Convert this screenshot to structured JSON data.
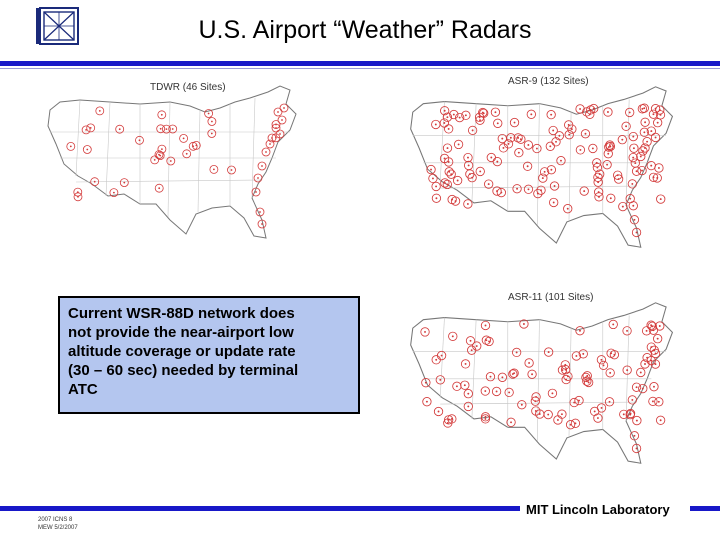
{
  "title": "U.S. Airport “Weather” Radars",
  "logo": {
    "icon": "mit-ll-logo-icon"
  },
  "maps": [
    {
      "id": "tdwr",
      "label": "TDWR (46 Sites)",
      "site_count": 46
    },
    {
      "id": "asr9",
      "label": "ASR-9 (132 Sites)",
      "site_count": 132
    },
    {
      "id": "asr11",
      "label": "ASR-11 (101 Sites)",
      "site_count": 101
    }
  ],
  "callout": {
    "lines": [
      "Current WSR-88D network does",
      "not provide the near-airport low",
      "altitude coverage or update rate",
      "(30 – 60 sec) needed by terminal",
      "ATC"
    ]
  },
  "footer": {
    "lab": "MIT Lincoln Laboratory",
    "meta_line1": "2007 ICNS 8",
    "meta_line2": "MEW 5/2/2007"
  },
  "colors": {
    "accent": "#1818c8",
    "callout_bg": "#b4c6ef",
    "site": "#d33a3a"
  }
}
